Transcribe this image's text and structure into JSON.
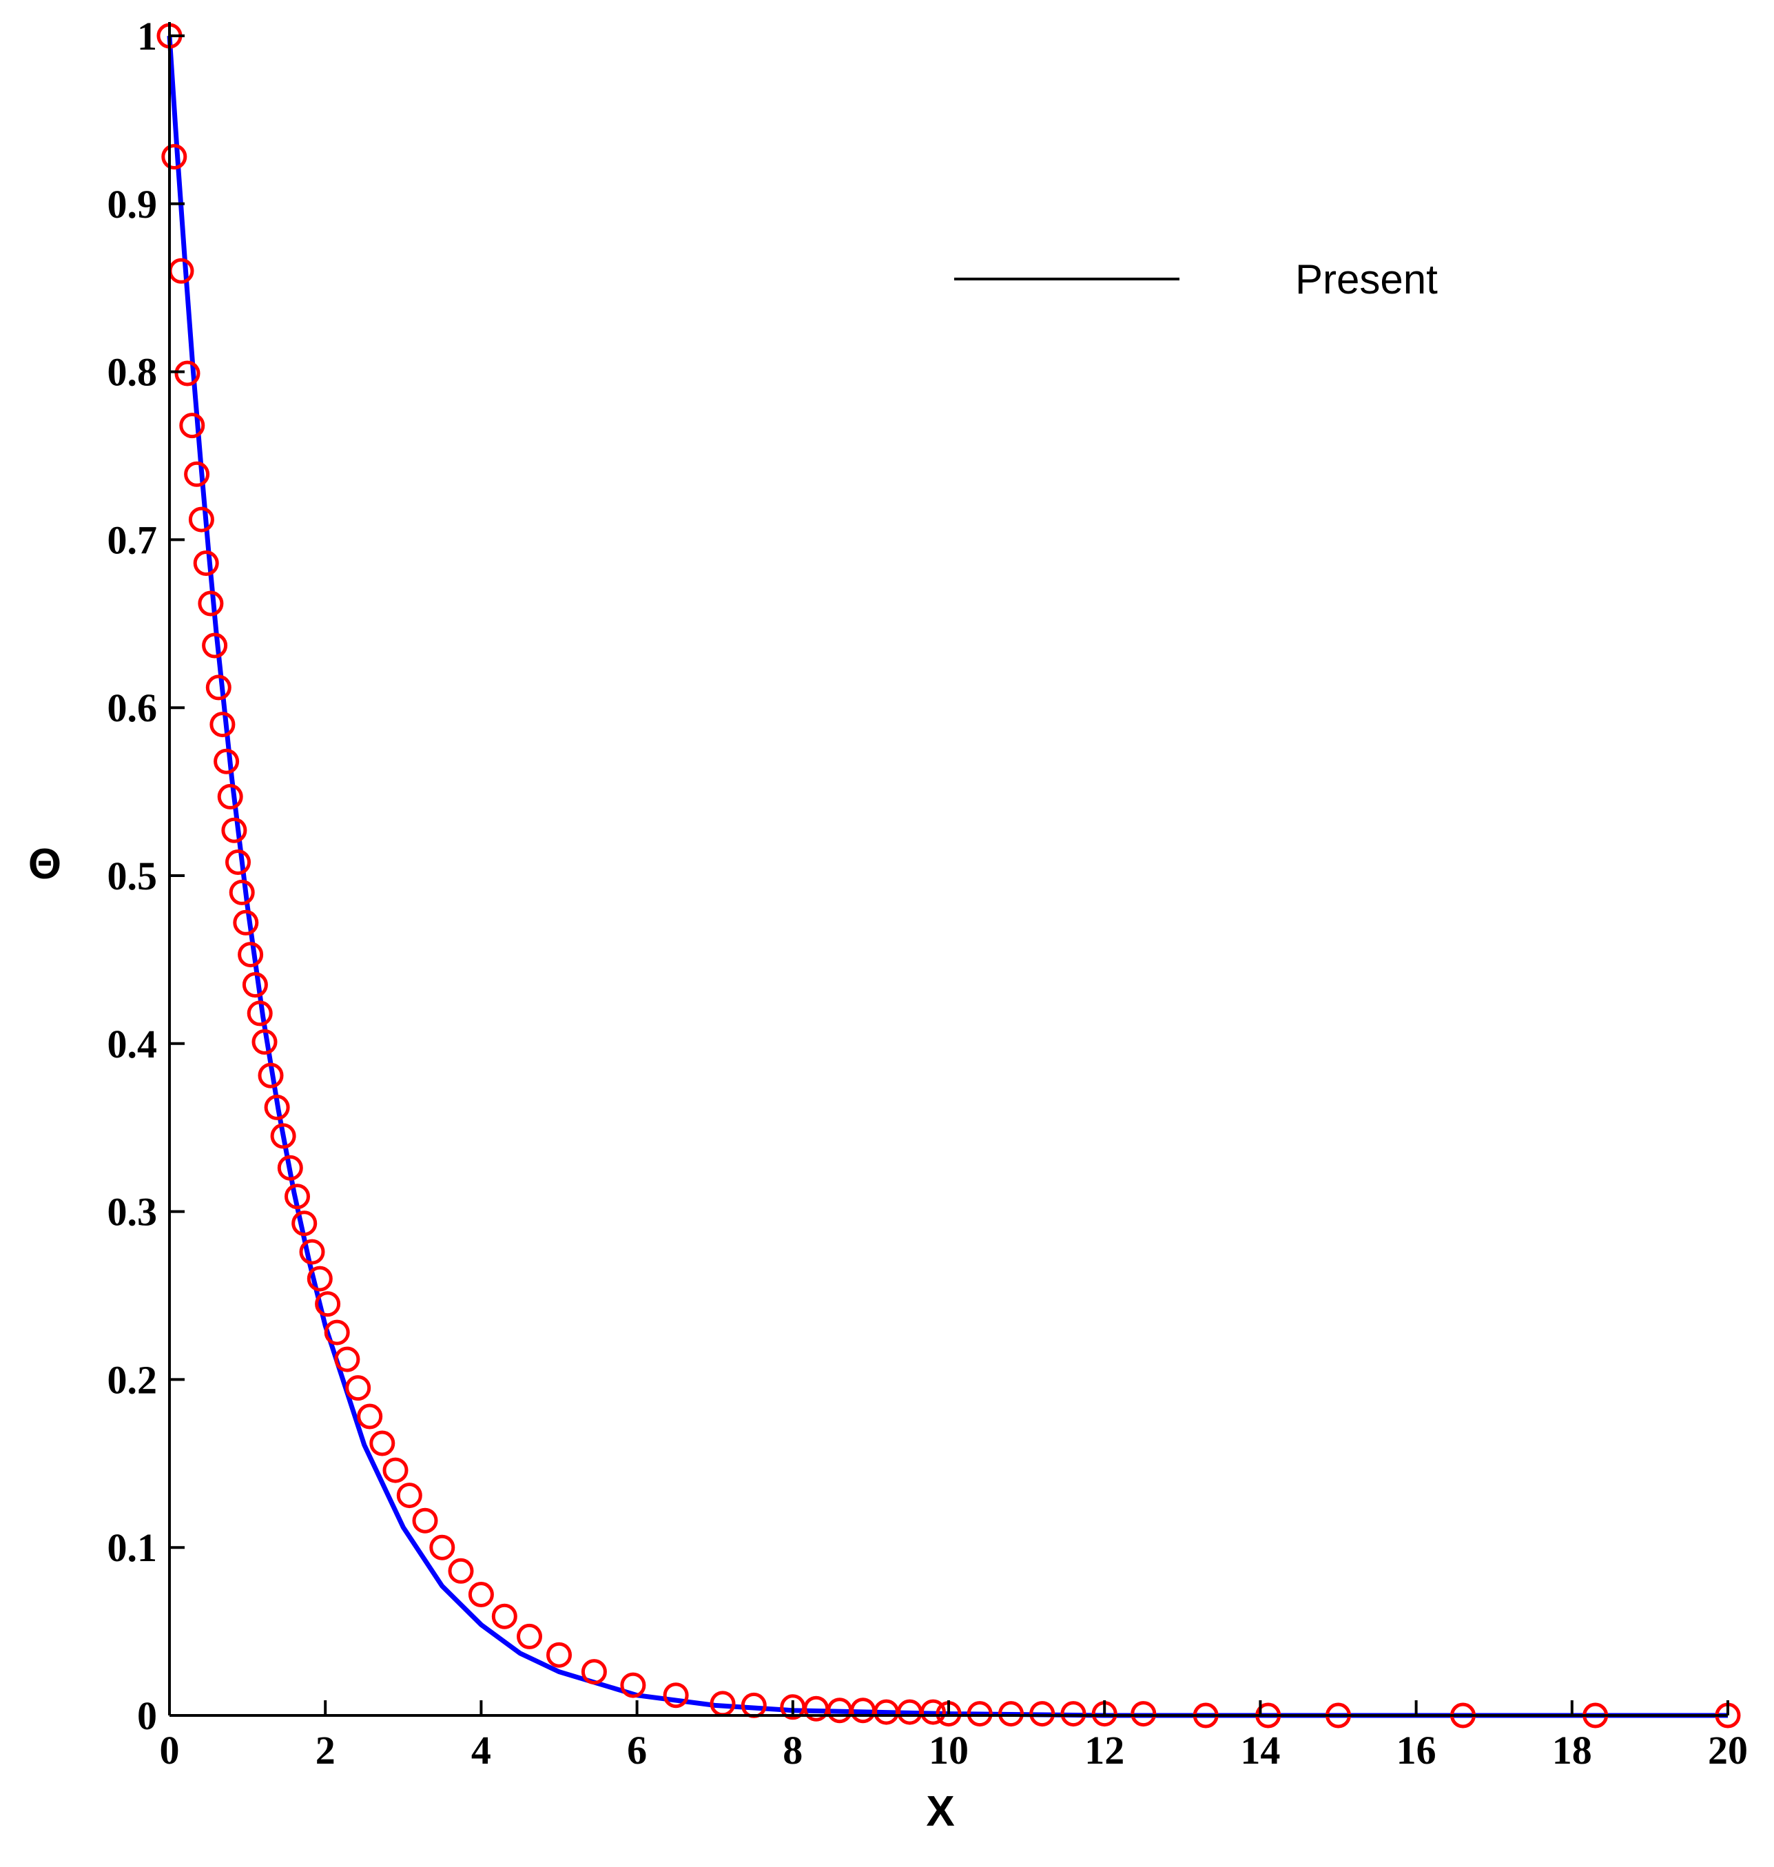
{
  "chart_data": {
    "type": "line",
    "xlabel": "X",
    "ylabel": "Θ",
    "xlim": [
      0,
      20
    ],
    "ylim": [
      0,
      1
    ],
    "xticks": [
      "0",
      "2",
      "4",
      "6",
      "8",
      "10",
      "12",
      "14",
      "16",
      "18",
      "20"
    ],
    "yticks": [
      "0",
      "0.1",
      "0.2",
      "0.3",
      "0.4",
      "0.5",
      "0.6",
      "0.7",
      "0.8",
      "0.9",
      "1"
    ],
    "grid": false,
    "legend": {
      "placement": "top-right",
      "entries": [
        "Present"
      ]
    },
    "series": [
      {
        "name": "Present",
        "style": "line",
        "color": "#0000ff",
        "x": [
          0,
          0.1,
          0.2,
          0.3,
          0.4,
          0.5,
          0.6,
          0.8,
          1.0,
          1.2,
          1.4,
          1.6,
          1.8,
          2.0,
          2.5,
          3.0,
          3.5,
          4.0,
          4.5,
          5.0,
          6.0,
          7.0,
          8.0,
          10.0,
          12.0,
          14.0,
          16.0,
          18.0,
          20.0
        ],
        "y": [
          1.0,
          0.93,
          0.865,
          0.803,
          0.747,
          0.694,
          0.645,
          0.558,
          0.482,
          0.416,
          0.36,
          0.311,
          0.269,
          0.232,
          0.161,
          0.112,
          0.077,
          0.054,
          0.037,
          0.026,
          0.012,
          0.006,
          0.003,
          0.001,
          0.0,
          0.0,
          0.0,
          0.0,
          0.0
        ]
      },
      {
        "style": "markers",
        "marker": "circle",
        "color": "#ff0000",
        "x": [
          0.0,
          0.06,
          0.15,
          0.23,
          0.29,
          0.35,
          0.41,
          0.47,
          0.53,
          0.58,
          0.63,
          0.68,
          0.73,
          0.78,
          0.83,
          0.88,
          0.93,
          0.98,
          1.04,
          1.1,
          1.16,
          1.22,
          1.3,
          1.38,
          1.46,
          1.55,
          1.64,
          1.73,
          1.83,
          1.93,
          2.03,
          2.15,
          2.28,
          2.42,
          2.57,
          2.73,
          2.9,
          3.08,
          3.28,
          3.5,
          3.74,
          4.0,
          4.3,
          4.62,
          5.0,
          5.45,
          5.95,
          6.5,
          7.1,
          7.5,
          8.0,
          8.3,
          8.6,
          8.9,
          9.2,
          9.5,
          9.8,
          10.0,
          10.4,
          10.8,
          11.2,
          11.6,
          12.0,
          12.5,
          13.3,
          14.1,
          15.0,
          16.6,
          18.3,
          20.0
        ],
        "y": [
          1.0,
          0.928,
          0.86,
          0.799,
          0.768,
          0.739,
          0.712,
          0.686,
          0.662,
          0.637,
          0.612,
          0.59,
          0.568,
          0.547,
          0.527,
          0.508,
          0.49,
          0.472,
          0.453,
          0.435,
          0.418,
          0.401,
          0.381,
          0.362,
          0.345,
          0.326,
          0.309,
          0.293,
          0.276,
          0.26,
          0.245,
          0.228,
          0.212,
          0.195,
          0.178,
          0.162,
          0.146,
          0.131,
          0.116,
          0.1,
          0.086,
          0.072,
          0.059,
          0.047,
          0.036,
          0.026,
          0.018,
          0.012,
          0.007,
          0.006,
          0.005,
          0.004,
          0.003,
          0.003,
          0.002,
          0.002,
          0.002,
          0.001,
          0.001,
          0.001,
          0.001,
          0.001,
          0.001,
          0.001,
          0.0,
          0.0,
          0.0,
          0.0,
          0.0,
          0.0
        ]
      }
    ]
  }
}
